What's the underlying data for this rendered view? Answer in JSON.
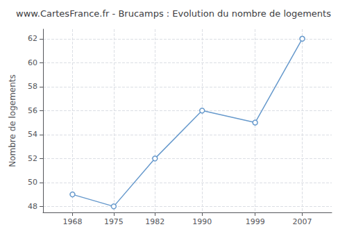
{
  "chart_data": {
    "type": "line",
    "title": "www.CartesFrance.fr - Brucamps : Evolution du nombre de logements",
    "ylabel": "Nombre de logements",
    "x": [
      1968,
      1975,
      1982,
      1990,
      1999,
      2007
    ],
    "values": [
      49,
      48,
      52,
      56,
      55,
      62
    ],
    "color": "#6699cc",
    "marker": "circle",
    "xlim": [
      1963,
      2012
    ],
    "xticks": [
      1968,
      1975,
      1982,
      1990,
      1999,
      2007
    ],
    "ylim": [
      47.5,
      62.8
    ],
    "yticks": [
      48,
      50,
      52,
      54,
      56,
      58,
      60,
      62
    ],
    "grid": true
  }
}
